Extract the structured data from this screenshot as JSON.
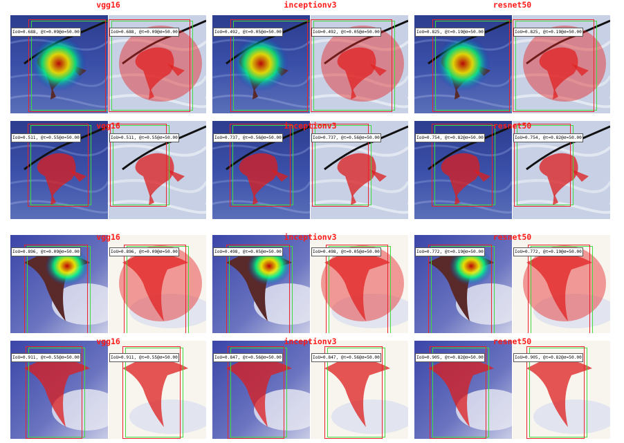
{
  "models": [
    "vgg16",
    "inceptionv3",
    "resnet50"
  ],
  "colors": {
    "title": "#ff1a1a",
    "pred_box": "#e8242a",
    "gt_box": "#3fdc3f",
    "mask": "#e8242a"
  },
  "rows": [
    {
      "scene": "bird-sea",
      "cells": [
        {
          "model": "vgg16",
          "iou_label": "IoU=0.688, @τ=0.09@σ=50.00"
        },
        {
          "model": "inceptionv3",
          "iou_label": "IoU=0.492, @τ=0.05@σ=50.00"
        },
        {
          "model": "resnet50",
          "iou_label": "IoU=0.825, @τ=0.19@σ=50.00"
        }
      ]
    },
    {
      "scene": "bird-sea",
      "cells": [
        {
          "model": "vgg16",
          "iou_label": "IoU=0.511, @τ=0.55@σ=50.00"
        },
        {
          "model": "inceptionv3",
          "iou_label": "IoU=0.737, @τ=0.56@σ=50.00"
        },
        {
          "model": "resnet50",
          "iou_label": "IoU=0.754, @τ=0.82@σ=50.00"
        }
      ]
    },
    {
      "scene": "bird-sky",
      "cells": [
        {
          "model": "vgg16",
          "iou_label": "IoU=0.896, @τ=0.09@σ=50.00"
        },
        {
          "model": "inceptionv3",
          "iou_label": "IoU=0.498, @τ=0.05@σ=50.00"
        },
        {
          "model": "resnet50",
          "iou_label": "IoU=0.772, @τ=0.19@σ=50.00"
        }
      ]
    },
    {
      "scene": "bird-sky",
      "cells": [
        {
          "model": "vgg16",
          "iou_label": "IoU=0.911, @τ=0.55@σ=50.00"
        },
        {
          "model": "inceptionv3",
          "iou_label": "IoU=0.847, @τ=0.56@σ=50.00"
        },
        {
          "model": "resnet50",
          "iou_label": "IoU=0.905, @τ=0.82@σ=50.00"
        }
      ]
    }
  ]
}
